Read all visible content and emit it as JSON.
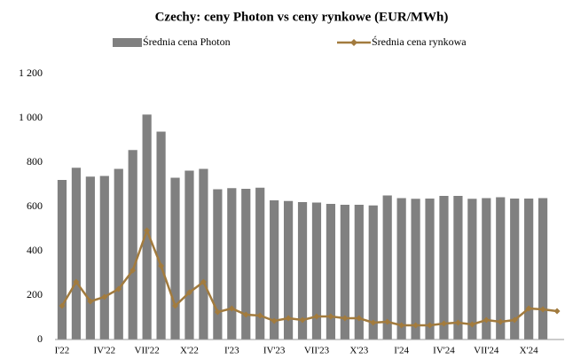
{
  "chart_data": {
    "type": "bar_line",
    "title": "Czechy: ceny Photon vs ceny rynkowe (EUR/MWh)",
    "categories": [
      "I'22",
      null,
      null,
      "IV'22",
      null,
      null,
      "VII'22",
      null,
      null,
      "X'22",
      null,
      null,
      "I'23",
      null,
      null,
      "IV'23",
      null,
      null,
      "VII'23",
      null,
      null,
      "X'23",
      null,
      null,
      "I'24",
      null,
      null,
      "IV'24",
      null,
      null,
      "VII'24",
      null,
      null,
      "X'24",
      null,
      null
    ],
    "series": [
      {
        "name": "Średnia cena Photon",
        "type": "bar",
        "color": "#808080",
        "values": [
          720,
          775,
          735,
          738,
          770,
          855,
          1015,
          938,
          730,
          762,
          770,
          678,
          683,
          680,
          685,
          628,
          625,
          620,
          618,
          612,
          608,
          608,
          605,
          650,
          638,
          635,
          636,
          648,
          648,
          635,
          638,
          642,
          636,
          636,
          638,
          null
        ]
      },
      {
        "name": "Średnia cena rynkowa",
        "type": "line",
        "color": "#a27b3e",
        "values": [
          152,
          260,
          172,
          192,
          228,
          312,
          492,
          332,
          152,
          212,
          260,
          124,
          140,
          112,
          108,
          84,
          96,
          88,
          104,
          104,
          96,
          96,
          76,
          80,
          64,
          64,
          64,
          72,
          76,
          68,
          88,
          80,
          88,
          140,
          136,
          128
        ]
      }
    ],
    "ylim": [
      0,
      1200
    ],
    "yticks": [
      0,
      200,
      400,
      600,
      800,
      {
        "value": 1000,
        "label": "1 000"
      },
      {
        "value": 1200,
        "label": "1 200"
      }
    ],
    "grid": false
  }
}
